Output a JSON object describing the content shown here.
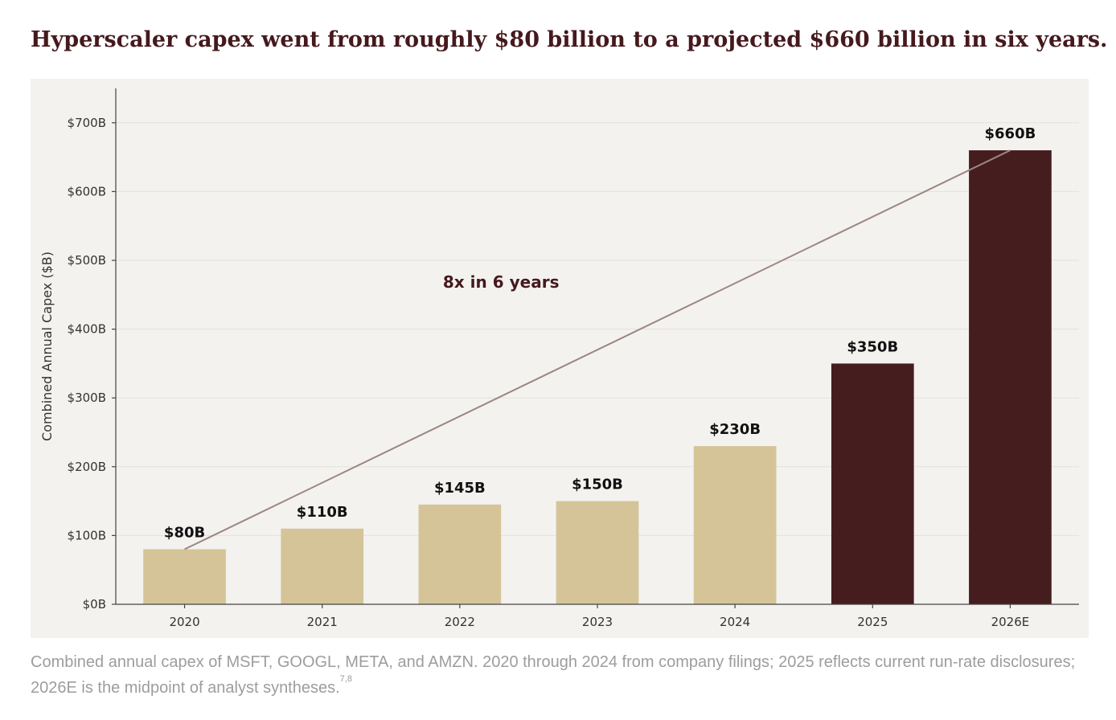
{
  "page": {
    "title": "Hyperscaler capex went from roughly $80 billion to a projected $660 billion in six years.",
    "caption": {
      "text": "Combined annual capex of MSFT, GOOGL, META, and AMZN. 2020 through 2024 from company filings; 2025 reflects current run-rate disclosures; 2026E is the midpoint of analyst syntheses.",
      "notes": "7,8"
    }
  },
  "chart_data": {
    "type": "bar",
    "title": "",
    "xlabel": "",
    "ylabel": "Combined Annual Capex ($B)",
    "categories": [
      "2020",
      "2021",
      "2022",
      "2023",
      "2024",
      "2025",
      "2026E"
    ],
    "values": [
      80,
      110,
      145,
      150,
      230,
      350,
      660
    ],
    "value_labels": [
      "$80B",
      "$110B",
      "$145B",
      "$150B",
      "$230B",
      "$350B",
      "$660B"
    ],
    "ylim": [
      0,
      750
    ],
    "yticks": [
      0,
      100,
      200,
      300,
      400,
      500,
      600,
      700
    ],
    "ytick_labels": [
      "$0B",
      "$100B",
      "$200B",
      "$300B",
      "$400B",
      "$500B",
      "$600B",
      "$700B"
    ],
    "grid": "horizontal",
    "colors": {
      "historical": "#d4c498",
      "projected": "#451d1f",
      "trend_line": "#9c8585",
      "grid": "#e3e1dc",
      "axis": "#444444"
    },
    "bar_colors": [
      "historical",
      "historical",
      "historical",
      "historical",
      "historical",
      "projected",
      "projected"
    ],
    "trend_line": {
      "from": [
        "2020",
        80
      ],
      "to": [
        "2026E",
        660
      ]
    },
    "annotation": {
      "text": "8x in 6 years",
      "x": 2.3,
      "y": 460
    }
  }
}
